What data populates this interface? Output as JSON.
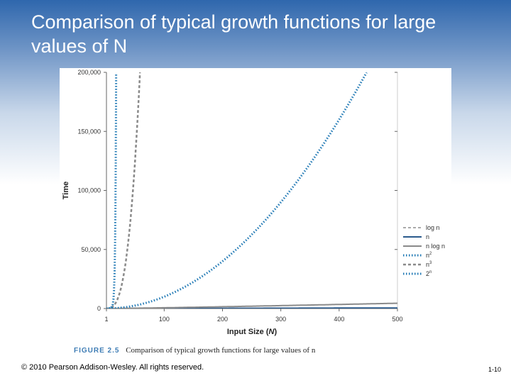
{
  "slide": {
    "title": "Comparison of typical growth functions for large values of N",
    "copyright": "© 2010 Pearson Addison-Wesley. All rights reserved.",
    "slide_number": "1-10"
  },
  "figure": {
    "number": "FIGURE 2.5",
    "caption": "Comparison of typical growth functions for large values of n"
  },
  "colors": {
    "dark_gray": "#555555",
    "gray": "#8a8a8a",
    "blue_dark": "#2a5a8c",
    "blue_dotted": "#1f78b4",
    "axis": "#666666"
  },
  "chart_data": {
    "type": "line",
    "title": "",
    "xlabel": "Input Size (N)",
    "ylabel": "Time",
    "xlim": [
      1,
      500
    ],
    "ylim": [
      0,
      200000
    ],
    "x_ticks": [
      1,
      100,
      200,
      300,
      400,
      500
    ],
    "y_ticks": [
      0,
      50000,
      100000,
      150000,
      200000
    ],
    "y_tick_labels": [
      "0",
      "50,000",
      "100,000",
      "150,000",
      "200,000"
    ],
    "legend_position": "right",
    "grid": false,
    "series": [
      {
        "name": "log n",
        "function": "log2(n)",
        "style": "dashed",
        "color": "#555555",
        "x": [
          1,
          100,
          200,
          300,
          400,
          500
        ],
        "values": [
          0,
          6.6,
          7.6,
          8.2,
          8.6,
          9.0
        ]
      },
      {
        "name": "n",
        "function": "n",
        "style": "solid",
        "color": "#2a5a8c",
        "x": [
          1,
          100,
          200,
          300,
          400,
          500
        ],
        "values": [
          1,
          100,
          200,
          300,
          400,
          500
        ]
      },
      {
        "name": "n log n",
        "function": "n*log2(n)",
        "style": "solid",
        "color": "#8a8a8a",
        "x": [
          1,
          100,
          200,
          300,
          400,
          500
        ],
        "values": [
          0,
          664,
          1529,
          2469,
          3458,
          4483
        ]
      },
      {
        "name": "n2",
        "sup": "2",
        "function": "n^2",
        "style": "dotted",
        "color": "#1f78b4",
        "x": [
          1,
          100,
          200,
          300,
          400,
          447
        ],
        "values": [
          1,
          10000,
          40000,
          90000,
          160000,
          200000
        ]
      },
      {
        "name": "n3",
        "sup": "3",
        "function": "n^3",
        "style": "dashed",
        "color": "#8a8a8a",
        "x": [
          1,
          20,
          40,
          58.5
        ],
        "values": [
          1,
          8000,
          64000,
          200000
        ]
      },
      {
        "name": "2n",
        "sup": "n",
        "function": "2^n",
        "style": "dotted",
        "color": "#1f78b4",
        "x": [
          1,
          10,
          15,
          17.6
        ],
        "values": [
          2,
          1024,
          32768,
          200000
        ]
      }
    ]
  }
}
